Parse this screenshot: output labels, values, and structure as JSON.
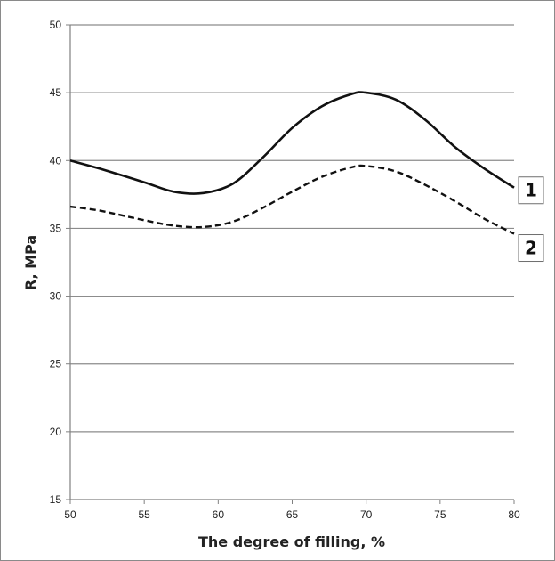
{
  "chart_data": {
    "type": "line",
    "xlabel": "The degree of filling, %",
    "ylabel": "R, MPa",
    "xlim": [
      50,
      80
    ],
    "ylim": [
      15,
      50
    ],
    "xticks": [
      50,
      55,
      60,
      65,
      70,
      75,
      80
    ],
    "yticks": [
      15,
      20,
      25,
      30,
      35,
      40,
      45,
      50
    ],
    "grid": "horizontal",
    "series": [
      {
        "name": "1",
        "style": "solid",
        "x": [
          50,
          52,
          55,
          57,
          59,
          61,
          63,
          65,
          67,
          69,
          70,
          72,
          74,
          76,
          78,
          80
        ],
        "values": [
          40.0,
          39.4,
          38.4,
          37.7,
          37.6,
          38.3,
          40.2,
          42.4,
          44.0,
          44.9,
          45.0,
          44.5,
          43.0,
          41.0,
          39.4,
          38.0
        ]
      },
      {
        "name": "2",
        "style": "dashed",
        "x": [
          50,
          52,
          55,
          57,
          59,
          61,
          63,
          65,
          67,
          69,
          70,
          72,
          74,
          76,
          78,
          80
        ],
        "values": [
          36.6,
          36.3,
          35.6,
          35.2,
          35.1,
          35.5,
          36.5,
          37.7,
          38.8,
          39.5,
          39.6,
          39.2,
          38.2,
          37.0,
          35.7,
          34.6
        ]
      }
    ],
    "colors": {
      "line": "#111111",
      "grid": "#8c8c8c",
      "axis": "#808080"
    }
  }
}
